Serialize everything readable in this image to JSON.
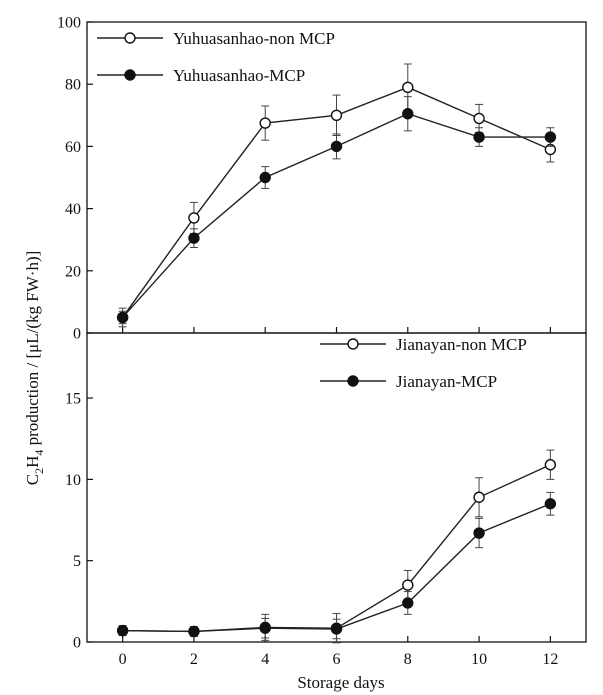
{
  "chart_data": {
    "type": "line",
    "xlabel": "Storage days",
    "ylabel": "C2H4 production / [μL/(kg FW·h)]",
    "ylabel_parts": {
      "c": "C",
      "c_sub": "2",
      "h": "H",
      "h_sub": "4",
      "rest": " production / [μL/(kg FW·h)]"
    },
    "x": [
      0,
      2,
      4,
      6,
      8,
      10,
      12
    ],
    "xlim": [
      -1,
      13
    ],
    "x_ticks": [
      "0",
      "2",
      "4",
      "6",
      "8",
      "10",
      "12"
    ],
    "grid": false,
    "panels": [
      {
        "ylim": [
          0,
          100
        ],
        "y_ticks": [
          "0",
          "20",
          "40",
          "60",
          "80",
          "100"
        ],
        "legend_position": "top-left",
        "series": [
          {
            "name": "Yuhuasanhao-non MCP",
            "marker": "open-circle",
            "values": [
              5,
              37,
              67.5,
              70,
              79,
              69,
              59
            ],
            "errors": [
              3,
              5,
              5.5,
              6.5,
              7.5,
              4.5,
              4
            ]
          },
          {
            "name": "Yuhuasanhao-MCP",
            "marker": "filled-circle",
            "values": [
              5,
              30.5,
              50,
              60,
              70.5,
              63,
              63
            ],
            "errors": [
              2,
              3,
              3.5,
              4,
              5.5,
              3,
              3
            ]
          }
        ]
      },
      {
        "ylim": [
          0,
          19
        ],
        "y_ticks": [
          "0",
          "5",
          "10",
          "15"
        ],
        "legend_position": "top-right",
        "series": [
          {
            "name": "Jianayan-non MCP",
            "marker": "open-circle",
            "values": [
              0.7,
              0.65,
              0.9,
              0.85,
              3.5,
              8.9,
              10.9
            ],
            "errors": [
              0.3,
              0.3,
              0.8,
              0.9,
              0.9,
              1.2,
              0.9
            ]
          },
          {
            "name": "Jianayan-MCP",
            "marker": "filled-circle",
            "values": [
              0.7,
              0.65,
              0.85,
              0.8,
              2.4,
              6.7,
              8.5
            ],
            "errors": [
              0.3,
              0.3,
              0.6,
              0.6,
              0.7,
              0.9,
              0.7
            ]
          }
        ]
      }
    ]
  }
}
